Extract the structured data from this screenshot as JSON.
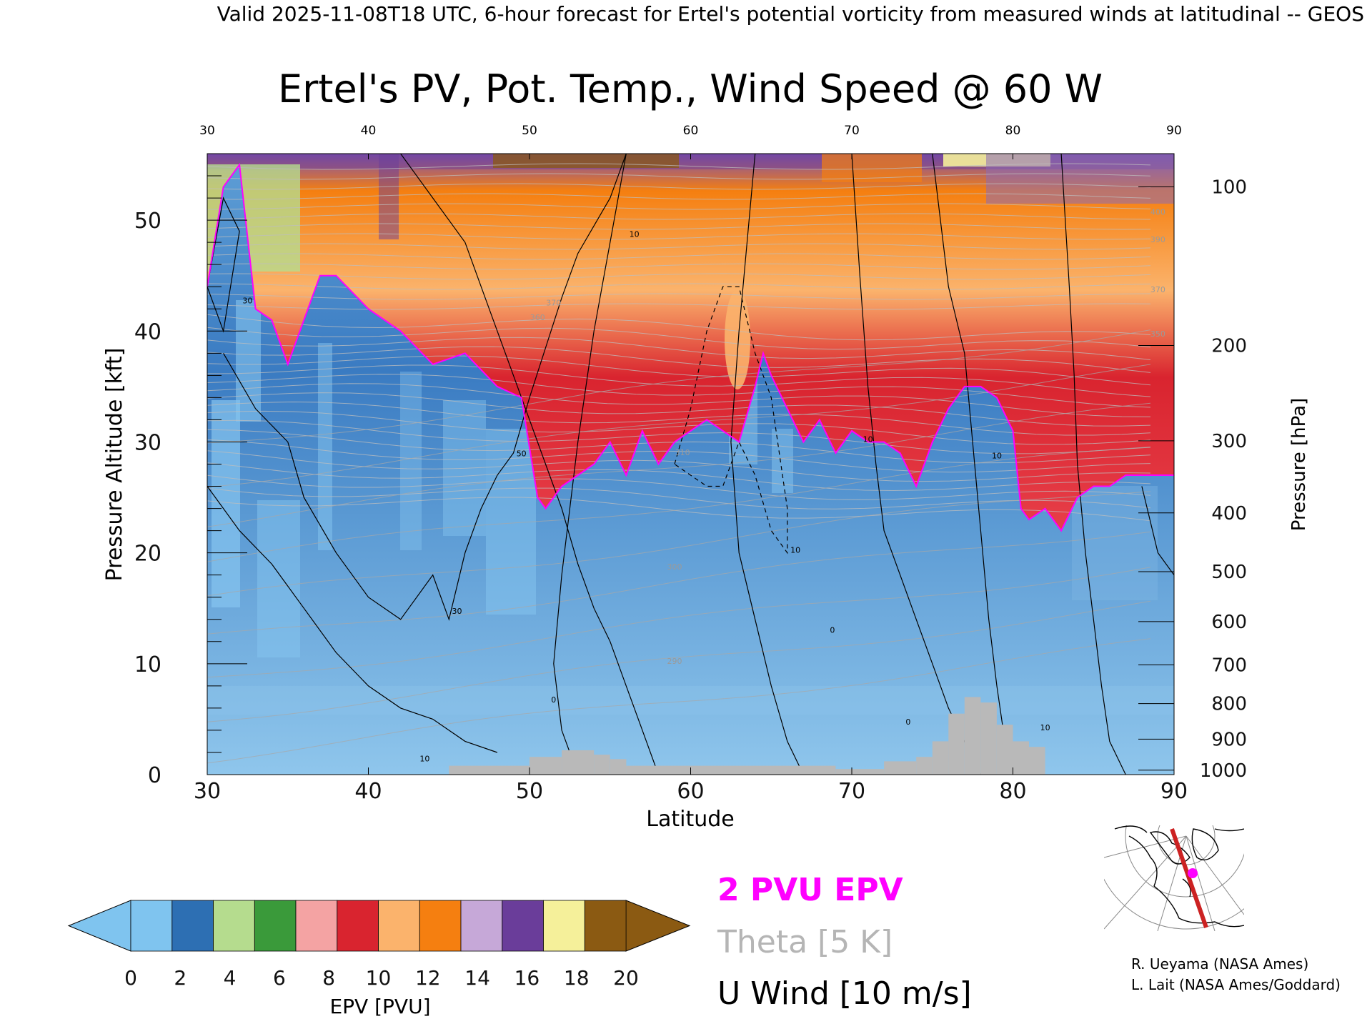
{
  "header": {
    "valid_line": "Valid 2025-11-08T18 UTC, 6-hour forecast for Ertel's potential vorticity from measured winds at latitudinal -- GEOS"
  },
  "chart_data": {
    "type": "heatmap",
    "title": "Ertel's PV, Pot. Temp., Wind Speed @ 60 W",
    "xlabel": "Latitude",
    "ylabel": "Pressure Altitude [kft]",
    "y2label": "Pressure [hPa]",
    "xlim": [
      30,
      90
    ],
    "ylim": [
      0,
      56
    ],
    "x_ticks": [
      30,
      40,
      50,
      60,
      70,
      80,
      90
    ],
    "x_top_ticks": [
      "30",
      "40",
      "50",
      "60",
      "70",
      "80",
      "90"
    ],
    "y_ticks": [
      0,
      10,
      20,
      30,
      40,
      50
    ],
    "pressure_ticks": [
      {
        "label": "100",
        "kft": 53.0
      },
      {
        "label": "200",
        "kft": 38.7
      },
      {
        "label": "300",
        "kft": 30.1
      },
      {
        "label": "400",
        "kft": 23.6
      },
      {
        "label": "500",
        "kft": 18.3
      },
      {
        "label": "600",
        "kft": 13.8
      },
      {
        "label": "700",
        "kft": 9.9
      },
      {
        "label": "800",
        "kft": 6.4
      },
      {
        "label": "900",
        "kft": 3.2
      },
      {
        "label": "1000",
        "kft": 0.4
      }
    ],
    "pv2_tropopause_kft": {
      "lat": [
        30,
        31,
        32,
        33,
        34,
        35,
        36,
        37,
        38,
        40,
        42,
        44,
        46,
        48,
        49.5,
        50.5,
        51,
        52,
        53,
        54,
        55,
        56,
        57,
        58,
        59,
        60,
        61,
        62,
        63,
        64,
        64.5,
        65,
        66,
        67,
        68,
        69,
        70,
        71,
        72,
        73,
        74,
        75,
        76,
        77,
        78,
        79,
        80,
        80.5,
        81,
        82,
        83,
        84,
        85,
        86,
        87,
        88,
        90
      ],
      "kft": [
        44,
        53,
        55,
        42,
        41,
        37,
        41,
        45,
        45,
        42,
        40,
        37,
        38,
        35,
        34,
        25,
        24,
        26,
        27,
        28,
        30,
        27,
        31,
        28,
        30,
        31,
        32,
        31,
        30,
        35,
        38,
        36,
        33,
        30,
        32,
        29,
        31,
        30,
        30,
        29,
        26,
        30,
        33,
        35,
        35,
        34,
        31,
        24,
        23,
        24,
        22,
        25,
        26,
        26,
        27,
        27,
        27
      ]
    },
    "surface_terrain_kft": [
      {
        "lat_start": 45,
        "lat_end": 50,
        "kft": 0.8
      },
      {
        "lat_start": 50,
        "lat_end": 52,
        "kft": 1.6
      },
      {
        "lat_start": 52,
        "lat_end": 54,
        "kft": 2.2
      },
      {
        "lat_start": 54,
        "lat_end": 55,
        "kft": 1.8
      },
      {
        "lat_start": 55,
        "lat_end": 56,
        "kft": 1.4
      },
      {
        "lat_start": 56,
        "lat_end": 69,
        "kft": 0.8
      },
      {
        "lat_start": 69,
        "lat_end": 72,
        "kft": 0.5
      },
      {
        "lat_start": 72,
        "lat_end": 74,
        "kft": 1.2
      },
      {
        "lat_start": 74,
        "lat_end": 75,
        "kft": 1.6
      },
      {
        "lat_start": 75,
        "lat_end": 76,
        "kft": 3.0
      },
      {
        "lat_start": 76,
        "lat_end": 77,
        "kft": 5.5
      },
      {
        "lat_start": 77,
        "lat_end": 78,
        "kft": 7.0
      },
      {
        "lat_start": 78,
        "lat_end": 79,
        "kft": 6.5
      },
      {
        "lat_start": 79,
        "lat_end": 80,
        "kft": 4.5
      },
      {
        "lat_start": 80,
        "lat_end": 81,
        "kft": 3.0
      },
      {
        "lat_start": 81,
        "lat_end": 82,
        "kft": 2.5
      }
    ],
    "wind_contour_labels": [
      {
        "text": "30",
        "lat": 32.5,
        "kft": 42.5
      },
      {
        "text": "30",
        "lat": 45.5,
        "kft": 14.5
      },
      {
        "text": "50",
        "lat": 49.5,
        "kft": 28.7
      },
      {
        "text": "10",
        "lat": 56.5,
        "kft": 48.5
      },
      {
        "text": "0",
        "lat": 51.5,
        "kft": 6.5
      },
      {
        "text": "10",
        "lat": 66.5,
        "kft": 20.0
      },
      {
        "text": "10",
        "lat": 71.0,
        "kft": 30.0
      },
      {
        "text": "10",
        "lat": 79.0,
        "kft": 28.5
      },
      {
        "text": "0",
        "lat": 68.8,
        "kft": 12.8
      },
      {
        "text": "10",
        "lat": 43.5,
        "kft": 1.2
      },
      {
        "text": "10",
        "lat": 82.0,
        "kft": 4.0
      },
      {
        "text": "0",
        "lat": 73.5,
        "kft": 4.5
      }
    ],
    "theta_contour_labels": [
      {
        "text": "370",
        "lat": 51.5,
        "kft": 42.3
      },
      {
        "text": "360",
        "lat": 50.5,
        "kft": 41.0
      },
      {
        "text": "400",
        "lat": 89.0,
        "kft": 50.5
      },
      {
        "text": "390",
        "lat": 89.0,
        "kft": 48.0
      },
      {
        "text": "370",
        "lat": 89.0,
        "kft": 43.5
      },
      {
        "text": "350",
        "lat": 89.0,
        "kft": 39.5
      },
      {
        "text": "310",
        "lat": 59.5,
        "kft": 28.8
      },
      {
        "text": "300",
        "lat": 59.0,
        "kft": 18.5
      },
      {
        "text": "290",
        "lat": 59.0,
        "kft": 10.0
      }
    ],
    "colorbar": {
      "label": "EPV [PVU]",
      "ticks": [
        "0",
        "2",
        "4",
        "6",
        "8",
        "10",
        "12",
        "14",
        "16",
        "18",
        "20"
      ],
      "colors": [
        "#7fc4ef",
        "#2d6fb3",
        "#b5dc8e",
        "#3a9a3a",
        "#f4a3a3",
        "#d9242f",
        "#fbb36c",
        "#f57f10",
        "#c6a8d8",
        "#6a3d9a",
        "#f5f09a",
        "#8b5a12"
      ],
      "under_color": "#7fc4ef",
      "over_color": "#8b5a12"
    }
  },
  "legend": {
    "pv_label": "2 PVU EPV",
    "theta_label": "Theta [5 K]",
    "wind_label": "U Wind [10 m/s]",
    "pv_color": "#ff00ff",
    "theta_color": "#b5b5b5",
    "wind_color": "#000000"
  },
  "credits": {
    "line1": "R. Ueyama (NASA Ames)",
    "line2": "L. Lait (NASA Ames/Goddard)"
  }
}
